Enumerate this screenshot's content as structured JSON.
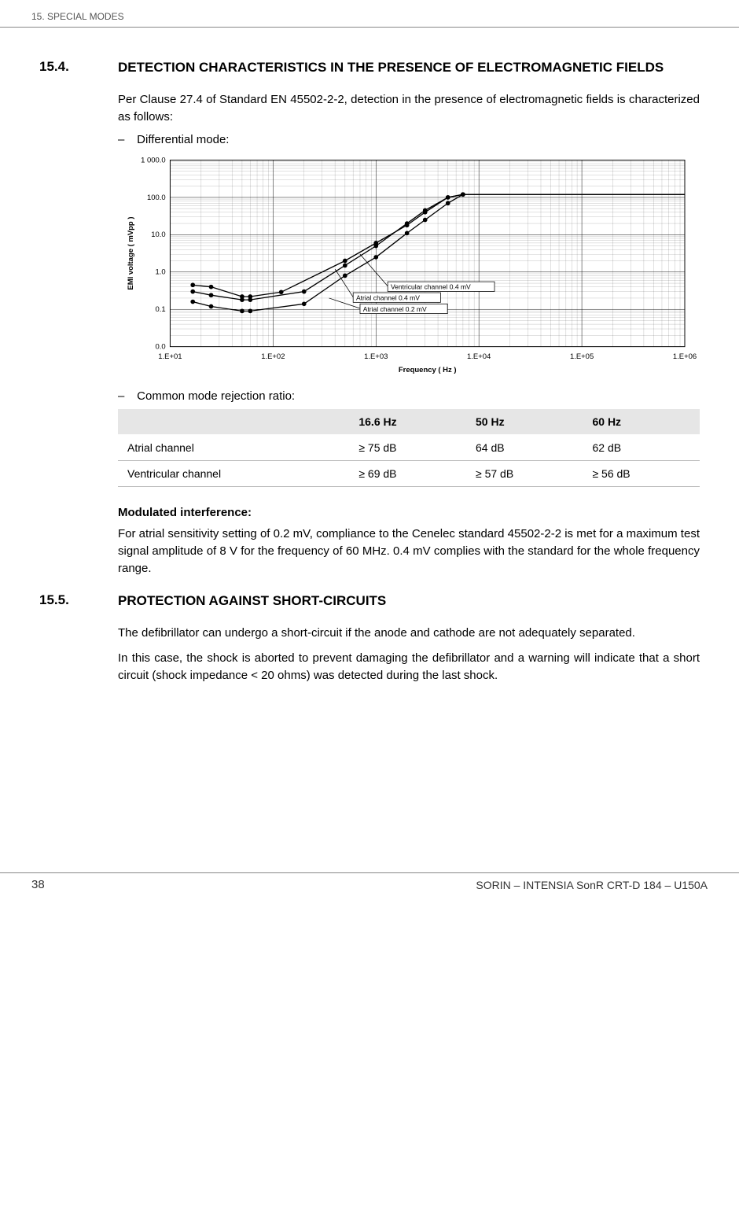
{
  "header": {
    "chapter": "15.  SPECIAL MODES"
  },
  "footer": {
    "page_number": "38",
    "doc_ref": "SORIN – INTENSIA SonR CRT-D 184 – U150A"
  },
  "section_154": {
    "number": "15.4.",
    "title": "DETECTION CHARACTERISTICS IN THE PRESENCE OF ELECTROMAGNETIC FIELDS",
    "intro": "Per Clause 27.4 of Standard EN 45502-2-2, detection in the presence of electromagnetic fields is characterized as follows:",
    "bullet_diff": "Differential mode:",
    "bullet_cmrr": "Common mode rejection ratio:"
  },
  "chart": {
    "y_axis_label": "EMI voltage ( mVpp )",
    "x_axis_label": "Frequency ( Hz )",
    "y_ticks": [
      "0.0",
      "0.1",
      "1.0",
      "10.0",
      "100.0",
      "1 000.0"
    ],
    "x_ticks": [
      "1.E+01",
      "1.E+02",
      "1.E+03",
      "1.E+04",
      "1.E+05",
      "1.E+06"
    ],
    "line_label_1": "Ventricular channel 0.4 mV",
    "line_label_2": "Atrial channel 0.4 mV",
    "line_label_3": "Atrial channel 0.2 mV",
    "series": {
      "ventricular_04": [
        {
          "x": 16.6,
          "y": 0.45
        },
        {
          "x": 25,
          "y": 0.4
        },
        {
          "x": 50,
          "y": 0.22
        },
        {
          "x": 60,
          "y": 0.22
        },
        {
          "x": 120,
          "y": 0.29
        },
        {
          "x": 500,
          "y": 2.0
        },
        {
          "x": 1000,
          "y": 6.0
        },
        {
          "x": 2000,
          "y": 18
        },
        {
          "x": 3000,
          "y": 40
        },
        {
          "x": 5000,
          "y": 100
        },
        {
          "x": 7000,
          "y": 120
        },
        {
          "x": 1000000,
          "y": 120
        }
      ],
      "atrial_04": [
        {
          "x": 16.6,
          "y": 0.3
        },
        {
          "x": 25,
          "y": 0.24
        },
        {
          "x": 50,
          "y": 0.18
        },
        {
          "x": 60,
          "y": 0.18
        },
        {
          "x": 200,
          "y": 0.3
        },
        {
          "x": 500,
          "y": 1.5
        },
        {
          "x": 1000,
          "y": 5.0
        },
        {
          "x": 2000,
          "y": 20
        },
        {
          "x": 3000,
          "y": 45
        },
        {
          "x": 5000,
          "y": 100
        },
        {
          "x": 7000,
          "y": 120
        },
        {
          "x": 1000000,
          "y": 120
        }
      ],
      "atrial_02": [
        {
          "x": 16.6,
          "y": 0.16
        },
        {
          "x": 25,
          "y": 0.12
        },
        {
          "x": 50,
          "y": 0.09
        },
        {
          "x": 60,
          "y": 0.09
        },
        {
          "x": 200,
          "y": 0.14
        },
        {
          "x": 500,
          "y": 0.8
        },
        {
          "x": 1000,
          "y": 2.5
        },
        {
          "x": 2000,
          "y": 11
        },
        {
          "x": 3000,
          "y": 25
        },
        {
          "x": 5000,
          "y": 70
        },
        {
          "x": 7000,
          "y": 120
        },
        {
          "x": 1000000,
          "y": 120
        }
      ]
    },
    "styling": {
      "plot_bg": "#ffffff",
      "grid_color": "#000000",
      "line_color": "#000000",
      "line_width": 1.4,
      "marker_size": 3
    }
  },
  "cmrr_table": {
    "columns": [
      "",
      "16.6 Hz",
      "50 Hz",
      "60 Hz"
    ],
    "rows": [
      [
        "Atrial channel",
        "≥ 75 dB",
        "64 dB",
        "62 dB"
      ],
      [
        "Ventricular channel",
        "≥ 69 dB",
        "≥ 57 dB",
        "≥ 56 dB"
      ]
    ]
  },
  "modulated": {
    "heading": "Modulated interference:",
    "text": "For atrial sensitivity setting of 0.2 mV, compliance to the Cenelec standard 45502-2-2 is met for a maximum test signal amplitude of 8 V for the frequency of 60 MHz. 0.4 mV complies with the standard for the whole frequency range."
  },
  "section_155": {
    "number": "15.5.",
    "title": "PROTECTION AGAINST SHORT-CIRCUITS",
    "p1": "The defibrillator can undergo a short-circuit if the anode and cathode are not adequately separated.",
    "p2": "In this case, the shock is aborted to prevent damaging the defibrillator and a warning will indicate that a short circuit (shock impedance < 20 ohms) was detected during the last shock."
  }
}
